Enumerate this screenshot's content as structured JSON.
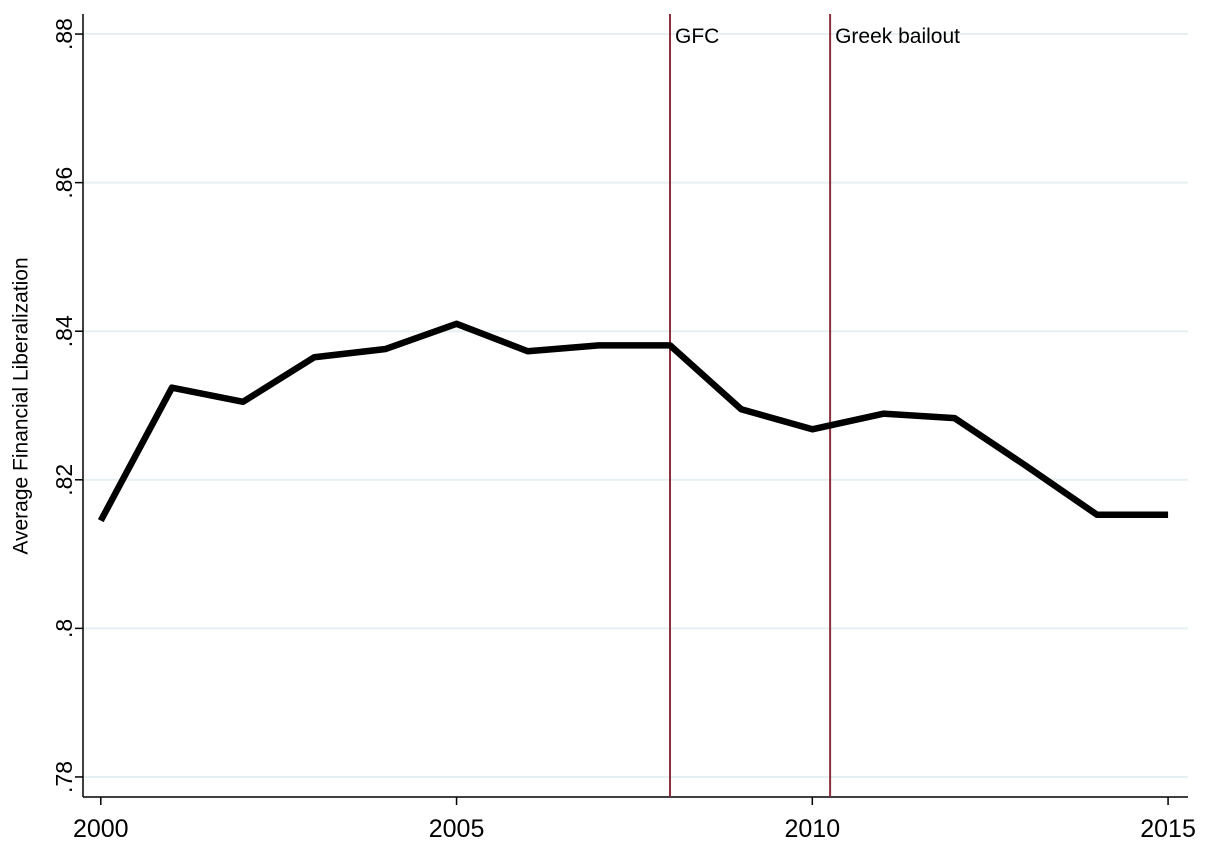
{
  "chart_data": {
    "type": "line",
    "y_label": "Average Financial Liberalization",
    "x": [
      2000,
      2001,
      2002,
      2003,
      2004,
      2005,
      2006,
      2007,
      2008,
      2009,
      2010,
      2011,
      2012,
      2013,
      2014,
      2015
    ],
    "series": [
      {
        "color": "#000000",
        "values": [
          0.8145,
          0.8324,
          0.8305,
          0.8365,
          0.8376,
          0.841,
          0.8373,
          0.8381,
          0.8381,
          0.8295,
          0.8268,
          0.8289,
          0.8283,
          0.8219,
          0.8153,
          0.8153
        ]
      }
    ],
    "xlim": [
      1999.75,
      2015.28
    ],
    "xticks": [
      2000,
      2005,
      2010,
      2015
    ],
    "ylim": [
      0.7773,
      0.8827
    ],
    "yticks": [
      {
        "value": 0.78,
        "label": ".78"
      },
      {
        "value": 0.8,
        "label": ".8"
      },
      {
        "value": 0.82,
        "label": ".82"
      },
      {
        "value": 0.84,
        "label": ".84"
      },
      {
        "value": 0.86,
        "label": ".86"
      },
      {
        "value": 0.88,
        "label": ".88"
      }
    ],
    "grid": true,
    "annotations": [
      {
        "x": 2008,
        "label": "GFC"
      },
      {
        "x": 2010.25,
        "label": "Greek bailout"
      }
    ],
    "annotation_color": "#8c2f3c"
  }
}
